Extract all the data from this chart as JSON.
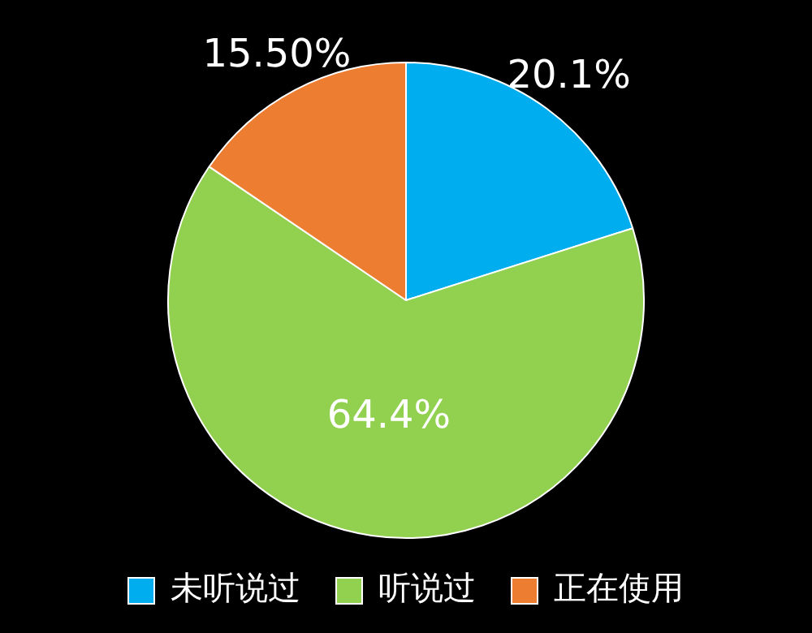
{
  "chart_data": {
    "type": "pie",
    "categories": [
      "未听说过",
      "听说过",
      "正在使用"
    ],
    "values": [
      20.1,
      64.4,
      15.5
    ],
    "colors": [
      "#00aeef",
      "#92d050",
      "#ed7d31"
    ],
    "value_labels": [
      "20.1%",
      "64.4%",
      "15.50%"
    ],
    "legend": "bottom"
  }
}
